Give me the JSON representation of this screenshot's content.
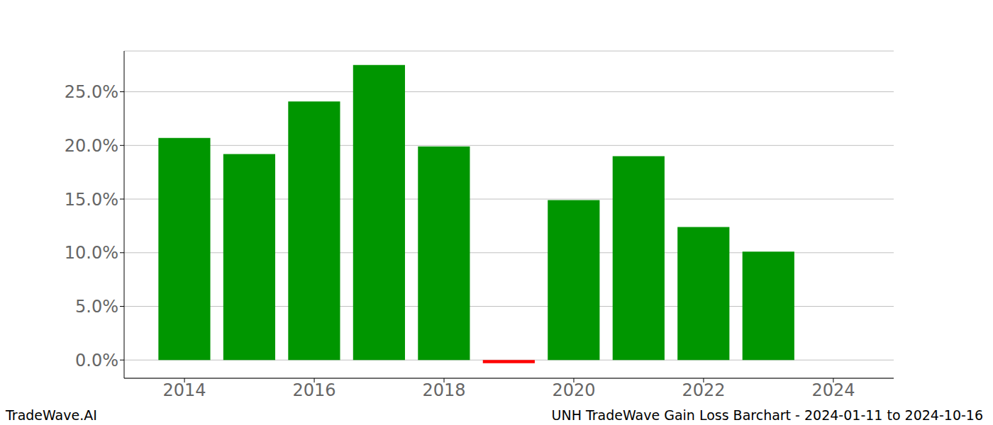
{
  "chart_data": {
    "type": "bar",
    "title": "UNH TradeWave Gain Loss Barchart - 2024-01-11 to 2024-10-16",
    "annotations": [
      "TradeWave.AI"
    ],
    "x": [
      2014,
      2015,
      2016,
      2017,
      2018,
      2019,
      2020,
      2021,
      2022,
      2023
    ],
    "values": [
      20.7,
      19.2,
      24.1,
      27.5,
      19.9,
      -0.3,
      14.9,
      19.0,
      12.4,
      10.1
    ],
    "colors": [
      "#009600",
      "#009600",
      "#009600",
      "#009600",
      "#009600",
      "#ff0000",
      "#009600",
      "#009600",
      "#009600",
      "#009600"
    ],
    "xlim": [
      2013.07,
      2024.93
    ],
    "xticks": [
      2014,
      2016,
      2018,
      2020,
      2022,
      2024
    ],
    "ylim": [
      -1.7,
      28.8
    ],
    "yticks": [
      {
        "value": 0,
        "label": "0.0%"
      },
      {
        "value": 5,
        "label": "5.0%"
      },
      {
        "value": 10,
        "label": "10.0%"
      },
      {
        "value": 15,
        "label": "15.0%"
      },
      {
        "value": 20,
        "label": "20.0%"
      },
      {
        "value": 25,
        "label": "25.0%"
      }
    ],
    "grid": true
  }
}
